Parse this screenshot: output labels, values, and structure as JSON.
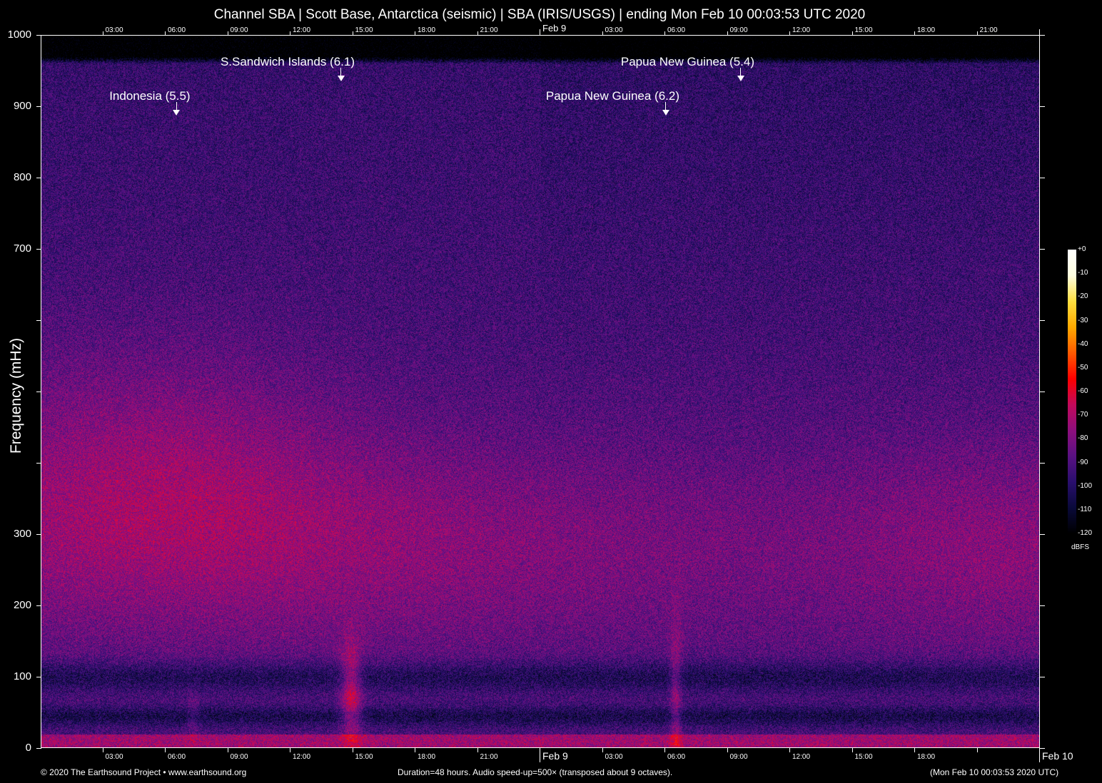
{
  "chart_data": {
    "type": "heatmap",
    "title": "Channel SBA | Scott Base, Antarctica (seismic) | SBA (IRIS/USGS) | ending Mon Feb 10 00:03:53 UTC 2020",
    "ylabel": "Frequency (mHz)",
    "ylim": [
      0,
      1000
    ],
    "y_ticks": [
      0,
      100,
      200,
      300,
      400,
      500,
      600,
      700,
      800,
      900,
      1000
    ],
    "y_tick_labels": [
      "0",
      "100",
      "200",
      "300",
      "",
      "",
      "",
      "700",
      "800",
      "900",
      "1000"
    ],
    "x_range_hours": [
      0,
      48
    ],
    "x_ticks_hours": [
      3,
      6,
      9,
      12,
      15,
      18,
      21,
      24,
      27,
      30,
      33,
      36,
      39,
      42,
      45,
      48
    ],
    "x_tick_labels_top": [
      "03:00",
      "06:00",
      "09:00",
      "12:00",
      "15:00",
      "18:00",
      "21:00",
      "Feb  9",
      "03:00",
      "06:00",
      "09:00",
      "12:00",
      "15:00",
      "18:00",
      "21:00",
      ""
    ],
    "x_tick_labels_bottom": [
      "03:00",
      "06:00",
      "09:00",
      "12:00",
      "15:00",
      "18:00",
      "21:00",
      "Feb  9",
      "03:00",
      "06:00",
      "09:00",
      "12:00",
      "15:00",
      "18:00",
      "",
      "Feb 10"
    ],
    "colorbar": {
      "label": "dBFS",
      "range": [
        -120,
        0
      ],
      "ticks": [
        "+0",
        "-10",
        "-20",
        "-30",
        "-40",
        "-50",
        "-60",
        "-70",
        "-80",
        "-90",
        "-100",
        "-110",
        "-120"
      ],
      "colormap": [
        "#000000",
        "#0a0a3a",
        "#2a0f6e",
        "#5a1283",
        "#8e0f7e",
        "#c30a5c",
        "#ff0000",
        "#ff5a00",
        "#ffaa00",
        "#ffe040",
        "#ffffe0",
        "#ffffff"
      ]
    },
    "annotations": [
      {
        "label": "Indonesia (5.5)",
        "hour": 6.5
      },
      {
        "label": "S.Sandwich Islands (6.1)",
        "hour": 14.4
      },
      {
        "label": "Papua New Guinea (6.2)",
        "hour": 30.0
      },
      {
        "label": "Papua New Guinea (5.4)",
        "hour": 33.6
      }
    ],
    "grid": false
  },
  "footer": {
    "left": "© 2020 The Earthsound Project • www.earthsound.org",
    "center": "Duration=48 hours. Audio speed-up=500× (transposed about 9 octaves).",
    "right": "(Mon Feb 10 00:03:53 2020 UTC)"
  }
}
